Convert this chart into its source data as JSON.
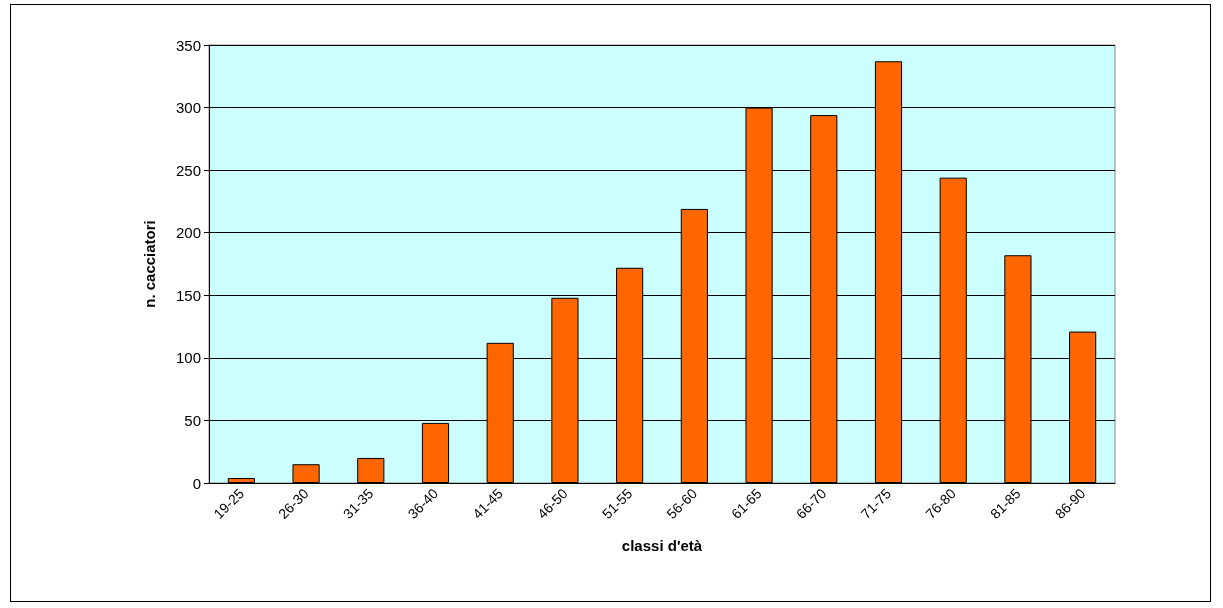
{
  "chart_data": {
    "type": "bar",
    "xlabel": "classi d'età",
    "ylabel": "n. cacciatori",
    "categories": [
      "19-25",
      "26-30",
      "31-35",
      "36-40",
      "41-45",
      "46-50",
      "51-55",
      "56-60",
      "61-65",
      "66-70",
      "71-75",
      "76-80",
      "81-85",
      "86-90"
    ],
    "values": [
      4,
      15,
      20,
      48,
      112,
      148,
      172,
      219,
      300,
      294,
      337,
      244,
      182,
      121
    ],
    "color": "#ff6600",
    "ylim": [
      0,
      350
    ],
    "yticks": [
      0,
      50,
      100,
      150,
      200,
      250,
      300,
      350
    ],
    "grid": "y"
  }
}
